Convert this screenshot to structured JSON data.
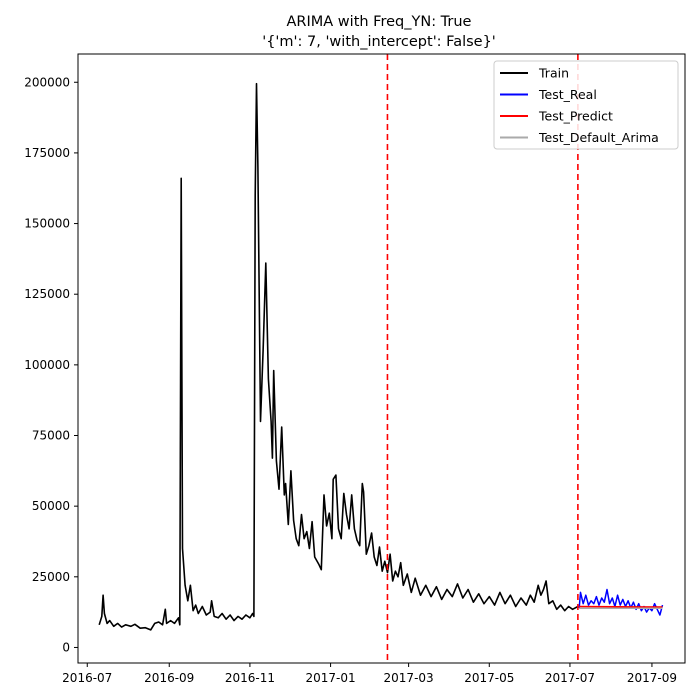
{
  "chart_data": {
    "type": "line",
    "title": "ARIMA with Freq_YN: True",
    "subtitle": "'{'m': 7, 'with_intercept': False}'",
    "xlabel": "",
    "ylabel": "",
    "xlim": [
      "2016-06-24",
      "2017-09-26"
    ],
    "ylim": [
      -5500,
      210000
    ],
    "grid": false,
    "legend_position": "upper-right",
    "x_ticks": [
      "2016-07",
      "2016-09",
      "2016-11",
      "2017-01",
      "2017-03",
      "2017-05",
      "2017-07",
      "2017-09"
    ],
    "y_ticks": [
      "0",
      "25000",
      "50000",
      "75000",
      "100000",
      "125000",
      "150000",
      "175000",
      "200000"
    ],
    "vlines": [
      {
        "x": "2017-02-13",
        "color": "#ff0000",
        "style": "dashed"
      },
      {
        "x": "2017-07-07",
        "color": "#ff0000",
        "style": "dashed"
      }
    ],
    "series": [
      {
        "name": "Train",
        "color": "#000000",
        "points": [
          [
            "2016-07-10",
            8000
          ],
          [
            "2016-07-12",
            11000
          ],
          [
            "2016-07-13",
            18500
          ],
          [
            "2016-07-14",
            12000
          ],
          [
            "2016-07-16",
            8500
          ],
          [
            "2016-07-18",
            9500
          ],
          [
            "2016-07-21",
            7500
          ],
          [
            "2016-07-24",
            8500
          ],
          [
            "2016-07-27",
            7200
          ],
          [
            "2016-07-30",
            8000
          ],
          [
            "2016-08-03",
            7500
          ],
          [
            "2016-08-06",
            8200
          ],
          [
            "2016-08-10",
            6800
          ],
          [
            "2016-08-14",
            7000
          ],
          [
            "2016-08-18",
            6200
          ],
          [
            "2016-08-21",
            8500
          ],
          [
            "2016-08-24",
            9000
          ],
          [
            "2016-08-27",
            8000
          ],
          [
            "2016-08-29",
            13500
          ],
          [
            "2016-08-30",
            8500
          ],
          [
            "2016-09-02",
            9500
          ],
          [
            "2016-09-05",
            8500
          ],
          [
            "2016-09-08",
            10500
          ],
          [
            "2016-09-09",
            8000
          ],
          [
            "2016-09-10",
            166000
          ],
          [
            "2016-09-11",
            35000
          ],
          [
            "2016-09-13",
            22000
          ],
          [
            "2016-09-15",
            16500
          ],
          [
            "2016-09-17",
            22000
          ],
          [
            "2016-09-19",
            13000
          ],
          [
            "2016-09-21",
            15000
          ],
          [
            "2016-09-23",
            12000
          ],
          [
            "2016-09-26",
            14500
          ],
          [
            "2016-09-29",
            11500
          ],
          [
            "2016-10-02",
            12500
          ],
          [
            "2016-10-03",
            16500
          ],
          [
            "2016-10-05",
            11000
          ],
          [
            "2016-10-08",
            10500
          ],
          [
            "2016-10-11",
            12000
          ],
          [
            "2016-10-14",
            10000
          ],
          [
            "2016-10-17",
            11500
          ],
          [
            "2016-10-20",
            9500
          ],
          [
            "2016-10-23",
            11000
          ],
          [
            "2016-10-26",
            10000
          ],
          [
            "2016-10-29",
            11500
          ],
          [
            "2016-11-01",
            10500
          ],
          [
            "2016-11-03",
            12000
          ],
          [
            "2016-11-04",
            11000
          ],
          [
            "2016-11-05",
            160000
          ],
          [
            "2016-11-06",
            199500
          ],
          [
            "2016-11-07",
            170000
          ],
          [
            "2016-11-09",
            80000
          ],
          [
            "2016-11-11",
            105000
          ],
          [
            "2016-11-13",
            136000
          ],
          [
            "2016-11-15",
            95000
          ],
          [
            "2016-11-17",
            80000
          ],
          [
            "2016-11-18",
            67000
          ],
          [
            "2016-11-19",
            98000
          ],
          [
            "2016-11-21",
            66000
          ],
          [
            "2016-11-23",
            56000
          ],
          [
            "2016-11-25",
            78000
          ],
          [
            "2016-11-27",
            54000
          ],
          [
            "2016-11-28",
            58000
          ],
          [
            "2016-11-30",
            43500
          ],
          [
            "2016-12-02",
            62500
          ],
          [
            "2016-12-04",
            45000
          ],
          [
            "2016-12-06",
            38500
          ],
          [
            "2016-12-08",
            36000
          ],
          [
            "2016-12-10",
            47000
          ],
          [
            "2016-12-12",
            38500
          ],
          [
            "2016-12-14",
            41000
          ],
          [
            "2016-12-16",
            35000
          ],
          [
            "2016-12-18",
            44500
          ],
          [
            "2016-12-20",
            32000
          ],
          [
            "2016-12-23",
            29500
          ],
          [
            "2016-12-25",
            27500
          ],
          [
            "2016-12-27",
            54000
          ],
          [
            "2016-12-29",
            43000
          ],
          [
            "2016-12-31",
            47500
          ],
          [
            "2017-01-02",
            38500
          ],
          [
            "2017-01-03",
            59500
          ],
          [
            "2017-01-05",
            61000
          ],
          [
            "2017-01-07",
            42000
          ],
          [
            "2017-01-09",
            38500
          ],
          [
            "2017-01-11",
            54500
          ],
          [
            "2017-01-13",
            47000
          ],
          [
            "2017-01-15",
            42000
          ],
          [
            "2017-01-17",
            54000
          ],
          [
            "2017-01-19",
            42000
          ],
          [
            "2017-01-21",
            38000
          ],
          [
            "2017-01-23",
            36000
          ],
          [
            "2017-01-25",
            58000
          ],
          [
            "2017-01-26",
            55000
          ],
          [
            "2017-01-28",
            33000
          ],
          [
            "2017-01-30",
            36000
          ],
          [
            "2017-02-01",
            40500
          ],
          [
            "2017-02-03",
            32000
          ],
          [
            "2017-02-05",
            29000
          ],
          [
            "2017-02-07",
            35500
          ],
          [
            "2017-02-09",
            27000
          ],
          [
            "2017-02-11",
            30500
          ],
          [
            "2017-02-13",
            26500
          ],
          [
            "2017-02-15",
            33000
          ],
          [
            "2017-02-17",
            23500
          ],
          [
            "2017-02-19",
            27000
          ],
          [
            "2017-02-21",
            25000
          ],
          [
            "2017-02-23",
            30000
          ],
          [
            "2017-02-25",
            22000
          ],
          [
            "2017-02-28",
            26000
          ],
          [
            "2017-03-03",
            19500
          ],
          [
            "2017-03-06",
            24500
          ],
          [
            "2017-03-10",
            18500
          ],
          [
            "2017-03-14",
            22000
          ],
          [
            "2017-03-18",
            18000
          ],
          [
            "2017-03-22",
            21500
          ],
          [
            "2017-03-26",
            17000
          ],
          [
            "2017-03-30",
            20500
          ],
          [
            "2017-04-03",
            18000
          ],
          [
            "2017-04-07",
            22500
          ],
          [
            "2017-04-11",
            17500
          ],
          [
            "2017-04-15",
            20500
          ],
          [
            "2017-04-19",
            16000
          ],
          [
            "2017-04-23",
            19000
          ],
          [
            "2017-04-27",
            15500
          ],
          [
            "2017-05-01",
            18000
          ],
          [
            "2017-05-05",
            15000
          ],
          [
            "2017-05-09",
            19500
          ],
          [
            "2017-05-13",
            15500
          ],
          [
            "2017-05-17",
            18500
          ],
          [
            "2017-05-21",
            14500
          ],
          [
            "2017-05-25",
            17500
          ],
          [
            "2017-05-29",
            15000
          ],
          [
            "2017-06-01",
            18500
          ],
          [
            "2017-06-04",
            16000
          ],
          [
            "2017-06-07",
            22000
          ],
          [
            "2017-06-09",
            18500
          ],
          [
            "2017-06-11",
            20500
          ],
          [
            "2017-06-13",
            23500
          ],
          [
            "2017-06-15",
            15500
          ],
          [
            "2017-06-18",
            16500
          ],
          [
            "2017-06-21",
            13500
          ],
          [
            "2017-06-24",
            15000
          ],
          [
            "2017-06-27",
            13000
          ],
          [
            "2017-06-30",
            14500
          ],
          [
            "2017-07-03",
            13500
          ],
          [
            "2017-07-07",
            14500
          ]
        ]
      },
      {
        "name": "Test_Real",
        "color": "#0000ff",
        "points": [
          [
            "2017-07-08",
            14000
          ],
          [
            "2017-07-09",
            19500
          ],
          [
            "2017-07-11",
            15500
          ],
          [
            "2017-07-13",
            18500
          ],
          [
            "2017-07-15",
            15000
          ],
          [
            "2017-07-17",
            16500
          ],
          [
            "2017-07-19",
            15500
          ],
          [
            "2017-07-21",
            18000
          ],
          [
            "2017-07-23",
            15000
          ],
          [
            "2017-07-25",
            17500
          ],
          [
            "2017-07-27",
            16000
          ],
          [
            "2017-07-29",
            20500
          ],
          [
            "2017-07-31",
            15500
          ],
          [
            "2017-08-02",
            17500
          ],
          [
            "2017-08-04",
            14500
          ],
          [
            "2017-08-06",
            18500
          ],
          [
            "2017-08-08",
            15000
          ],
          [
            "2017-08-10",
            17000
          ],
          [
            "2017-08-12",
            14500
          ],
          [
            "2017-08-14",
            16500
          ],
          [
            "2017-08-16",
            14000
          ],
          [
            "2017-08-18",
            16000
          ],
          [
            "2017-08-20",
            13500
          ],
          [
            "2017-08-22",
            15500
          ],
          [
            "2017-08-24",
            13000
          ],
          [
            "2017-08-26",
            14500
          ],
          [
            "2017-08-28",
            12500
          ],
          [
            "2017-08-30",
            14000
          ],
          [
            "2017-09-01",
            13000
          ],
          [
            "2017-09-03",
            15500
          ],
          [
            "2017-09-05",
            13500
          ],
          [
            "2017-09-07",
            11500
          ],
          [
            "2017-09-09",
            15000
          ]
        ]
      },
      {
        "name": "Test_Predict",
        "color": "#ff0000",
        "points": [
          [
            "2017-07-08",
            14500
          ],
          [
            "2017-09-09",
            14300
          ]
        ]
      },
      {
        "name": "Test_Default_Arima",
        "color": "#aaaaaa",
        "points": [
          [
            "2017-07-08",
            13900
          ],
          [
            "2017-09-09",
            13900
          ]
        ]
      }
    ]
  }
}
